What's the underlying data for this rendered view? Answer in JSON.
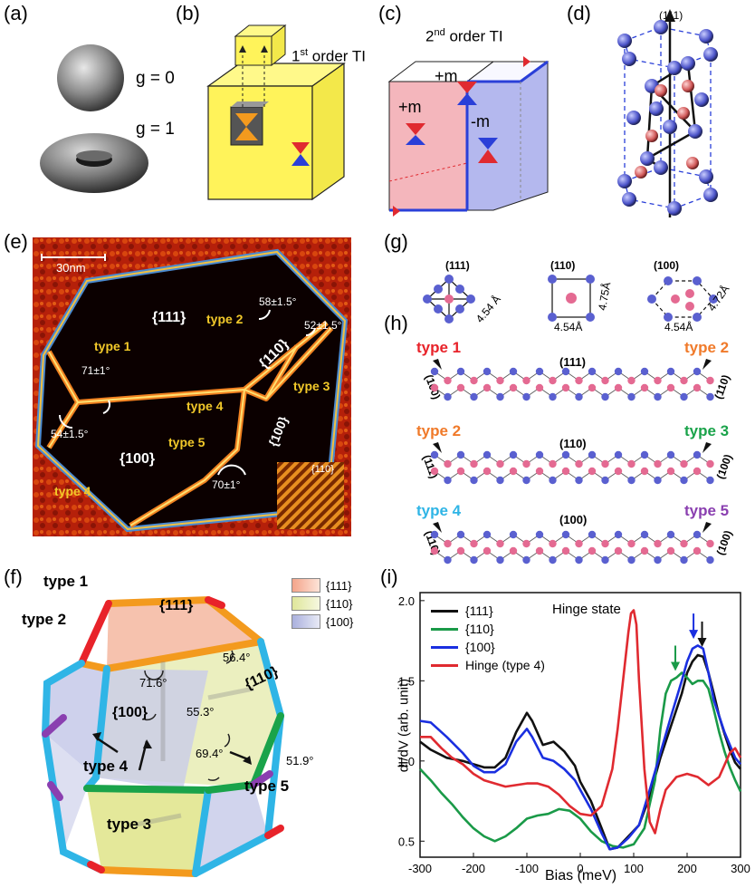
{
  "panels": {
    "a": {
      "label": "(a)",
      "g0": "g = 0",
      "g1": "g = 1"
    },
    "b": {
      "label": "(b)",
      "title": "1st order TI"
    },
    "c": {
      "label": "(c)",
      "title": "2nd order TI",
      "pm1": "+m",
      "pm2": "+m",
      "mm": "-m"
    },
    "d": {
      "label": "(d)",
      "axis": "(111)"
    },
    "e": {
      "label": "(e)",
      "scale": "30nm",
      "facets": [
        "{111}",
        "{110}",
        "{100}",
        "{100}"
      ],
      "inset": "{110}",
      "types": [
        "type 1",
        "type 2",
        "type 3",
        "type 4",
        "type 4",
        "type 5"
      ],
      "angles": [
        "58±1.5°",
        "52±1.5°",
        "71±1°",
        "54±1.5°",
        "70±1°"
      ]
    },
    "f": {
      "label": "(f)",
      "legend": [
        {
          "name": "{111}",
          "color": "#f4a48a"
        },
        {
          "name": "{110}",
          "color": "#dfe69a"
        },
        {
          "name": "{100}",
          "color": "#aab0dd"
        }
      ],
      "facets": [
        "{111}",
        "{110}",
        "{100}"
      ],
      "types": [
        "type 1",
        "type 2",
        "type 4",
        "type 3",
        "type 5"
      ],
      "angles": [
        "71.6°",
        "56.4°",
        "55.3°",
        "69.4°",
        "51.9°"
      ],
      "edge_colors": {
        "type1": "#e8232a",
        "type2": "#f39a1e",
        "type3": "#1aa34a",
        "type4": "#2fb5e6",
        "type5": "#8a3fb0"
      }
    },
    "g": {
      "label": "(g)",
      "items": [
        {
          "title": "(111)",
          "dim1": "4.54 Å"
        },
        {
          "title": "(110)",
          "dim1": "4.54Å",
          "dim2": "4.75Å"
        },
        {
          "title": "(100)",
          "dim1": "4.54Å",
          "dim2": "4.72Å"
        }
      ]
    },
    "h": {
      "label": "(h)",
      "rows": [
        {
          "left_type": "type 1",
          "right_type": "type 2",
          "center": "(111)",
          "left_face": "(100)",
          "right_face": "(110)",
          "left_color": "#e8232a",
          "right_color": "#f07a2a"
        },
        {
          "left_type": "type 2",
          "right_type": "type 3",
          "center": "(110)",
          "left_face": "(111)",
          "right_face": "(100)",
          "left_color": "#f07a2a",
          "right_color": "#1aa34a"
        },
        {
          "left_type": "type 4",
          "right_type": "type 5",
          "center": "(100)",
          "left_face": "(110)",
          "right_face": "(100)",
          "left_color": "#2fb5e6",
          "right_color": "#8a3fb0"
        }
      ]
    },
    "i": {
      "label": "(i)",
      "annotation": "Hinge state"
    }
  },
  "chart_data": {
    "type": "line",
    "xlabel": "Bias (meV)",
    "ylabel": "dI/dV (arb. unit)",
    "xlim": [
      -300,
      300
    ],
    "ylim": [
      0.4,
      2.05
    ],
    "xticks": [
      -300,
      -200,
      -100,
      0,
      100,
      200,
      300
    ],
    "yticks": [
      0.5,
      1.0,
      1.5,
      2.0
    ],
    "ytick_labels": [
      "0.5",
      "1.0",
      "1.5",
      "2.0"
    ],
    "legend_position": "top-left",
    "series": [
      {
        "name": "{111}",
        "color": "#111111",
        "x": [
          -300,
          -280,
          -250,
          -220,
          -200,
          -180,
          -160,
          -140,
          -120,
          -100,
          -90,
          -70,
          -50,
          -30,
          -10,
          0,
          20,
          40,
          55,
          70,
          90,
          110,
          130,
          150,
          170,
          190,
          200,
          210,
          220,
          230,
          240,
          250,
          260,
          270,
          280,
          290,
          300
        ],
        "y": [
          1.12,
          1.07,
          1.02,
          1.0,
          0.98,
          0.96,
          0.96,
          1.02,
          1.18,
          1.3,
          1.25,
          1.1,
          1.12,
          1.06,
          0.97,
          0.87,
          0.75,
          0.58,
          0.45,
          0.46,
          0.53,
          0.6,
          0.78,
          1.02,
          1.22,
          1.42,
          1.55,
          1.62,
          1.66,
          1.65,
          1.55,
          1.42,
          1.28,
          1.17,
          1.07,
          0.99,
          0.95
        ]
      },
      {
        "name": "{110}",
        "color": "#1a9a48",
        "x": [
          -300,
          -280,
          -260,
          -240,
          -220,
          -200,
          -180,
          -160,
          -140,
          -120,
          -100,
          -80,
          -60,
          -40,
          -20,
          0,
          20,
          40,
          60,
          80,
          100,
          120,
          140,
          150,
          160,
          170,
          180,
          190,
          200,
          210,
          220,
          230,
          240,
          250,
          260,
          270,
          280,
          290,
          300
        ],
        "y": [
          0.95,
          0.88,
          0.8,
          0.73,
          0.65,
          0.58,
          0.53,
          0.5,
          0.53,
          0.58,
          0.64,
          0.66,
          0.67,
          0.7,
          0.69,
          0.64,
          0.56,
          0.5,
          0.47,
          0.46,
          0.48,
          0.58,
          0.88,
          1.2,
          1.42,
          1.5,
          1.52,
          1.55,
          1.52,
          1.48,
          1.5,
          1.5,
          1.45,
          1.32,
          1.18,
          1.06,
          0.96,
          0.88,
          0.81
        ]
      },
      {
        "name": "{100}",
        "color": "#1a2fe0",
        "x": [
          -300,
          -280,
          -250,
          -220,
          -200,
          -180,
          -160,
          -140,
          -120,
          -100,
          -90,
          -70,
          -50,
          -30,
          -10,
          0,
          20,
          40,
          55,
          70,
          90,
          110,
          130,
          150,
          170,
          190,
          200,
          210,
          220,
          230,
          240,
          250,
          260,
          270,
          280,
          290,
          300
        ],
        "y": [
          1.25,
          1.24,
          1.15,
          1.05,
          0.97,
          0.93,
          0.93,
          0.98,
          1.12,
          1.2,
          1.15,
          1.02,
          1.0,
          0.95,
          0.88,
          0.82,
          0.7,
          0.55,
          0.45,
          0.46,
          0.52,
          0.6,
          0.82,
          1.05,
          1.28,
          1.5,
          1.62,
          1.7,
          1.72,
          1.7,
          1.55,
          1.38,
          1.28,
          1.18,
          1.1,
          1.02,
          0.98
        ]
      },
      {
        "name": "Hinge (type 4)",
        "color": "#e02a30",
        "x": [
          -300,
          -280,
          -260,
          -240,
          -220,
          -200,
          -180,
          -160,
          -140,
          -120,
          -100,
          -80,
          -60,
          -40,
          -20,
          0,
          20,
          40,
          60,
          70,
          80,
          90,
          95,
          100,
          105,
          110,
          120,
          130,
          140,
          150,
          160,
          180,
          200,
          220,
          240,
          260,
          280,
          290,
          300
        ],
        "y": [
          1.15,
          1.15,
          1.08,
          1.02,
          0.98,
          0.92,
          0.88,
          0.86,
          0.84,
          0.85,
          0.86,
          0.86,
          0.84,
          0.79,
          0.72,
          0.67,
          0.66,
          0.72,
          0.95,
          1.2,
          1.5,
          1.8,
          1.92,
          1.94,
          1.85,
          1.5,
          0.95,
          0.62,
          0.55,
          0.7,
          0.82,
          0.9,
          0.92,
          0.9,
          0.85,
          0.9,
          1.05,
          1.08,
          1.02
        ]
      }
    ],
    "annotations": [
      {
        "text": "Hinge state",
        "x": 80,
        "y": 1.93
      },
      {
        "arrow": "green",
        "x": 178,
        "y": 1.55
      },
      {
        "arrow": "blue",
        "x": 212,
        "y": 1.75
      },
      {
        "arrow": "black",
        "x": 228,
        "y": 1.7
      }
    ]
  }
}
